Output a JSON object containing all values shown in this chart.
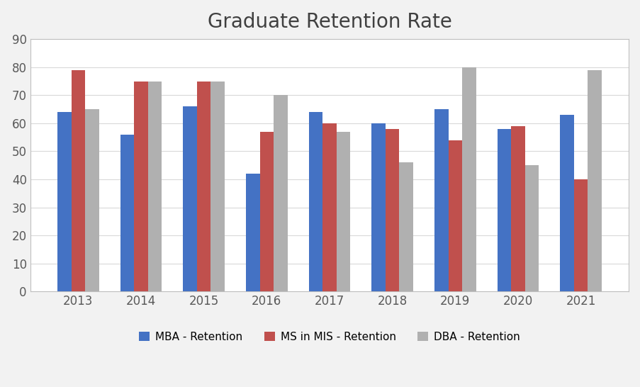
{
  "title": "Graduate Retention Rate",
  "years": [
    2013,
    2014,
    2015,
    2016,
    2017,
    2018,
    2019,
    2020,
    2021
  ],
  "series": {
    "MBA - Retention": [
      64,
      56,
      66,
      42,
      64,
      60,
      65,
      58,
      63
    ],
    "MS in MIS - Retention": [
      79,
      75,
      75,
      57,
      60,
      58,
      54,
      59,
      40
    ],
    "DBA - Retention": [
      65,
      75,
      75,
      70,
      57,
      46,
      80,
      45,
      79
    ]
  },
  "bar_colors": {
    "MBA - Retention": "#4472C4",
    "MS in MIS - Retention": "#C0504D",
    "DBA - Retention": "#B0B0B0"
  },
  "ylim": [
    0,
    90
  ],
  "yticks": [
    0,
    10,
    20,
    30,
    40,
    50,
    60,
    70,
    80,
    90
  ],
  "outer_background": "#F2F2F2",
  "plot_background": "#FFFFFF",
  "title_fontsize": 20,
  "tick_fontsize": 12,
  "legend_fontsize": 11,
  "bar_width": 0.22,
  "grid_color": "#D9D9D9",
  "title_color": "#404040",
  "tick_color": "#595959",
  "border_color": "#BFBFBF"
}
